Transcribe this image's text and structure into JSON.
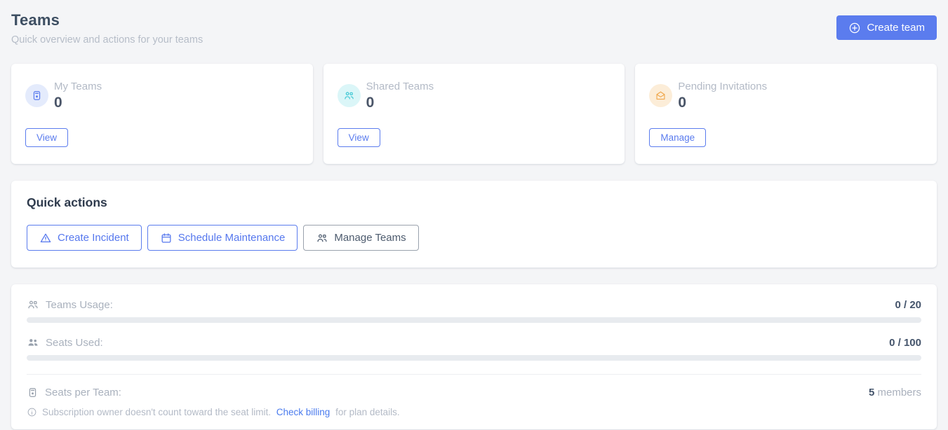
{
  "colors": {
    "accent_blue": "#5b7cee",
    "link_blue": "#4a7bee",
    "cyan_icon": "#3ec7d4",
    "orange_icon": "#f0a64a",
    "dark_text": "#44546b",
    "muted_text": "#b3bac6",
    "page_background": "#f4f5f7"
  },
  "header": {
    "title": "Teams",
    "subtitle": "Quick overview and actions for your teams",
    "create_team_button": "Create team"
  },
  "stat_cards": [
    {
      "title": "My Teams",
      "value": "0",
      "action": "View"
    },
    {
      "title": "Shared Teams",
      "value": "0",
      "action": "View"
    },
    {
      "title": "Pending Invitations",
      "value": "0",
      "action": "Manage"
    }
  ],
  "quick_actions": {
    "title": "Quick actions",
    "create_incident": "Create Incident",
    "schedule_maintenance": "Schedule Maintenance",
    "manage_teams": "Manage Teams"
  },
  "usage": {
    "teams_usage": {
      "label": "Teams Usage:",
      "value": "0 / 20",
      "used": 0,
      "limit": 20,
      "progress_percent": 0
    },
    "seats_used": {
      "label": "Seats Used:",
      "value": "0 / 100",
      "used": 0,
      "limit": 100,
      "progress_percent": 0
    },
    "seats_per_team": {
      "label": "Seats per Team:",
      "value": "5",
      "unit": "members"
    },
    "note": {
      "prefix": "Subscription owner doesn't count toward the seat limit.",
      "link": "Check billing",
      "suffix": "for plan details."
    }
  }
}
